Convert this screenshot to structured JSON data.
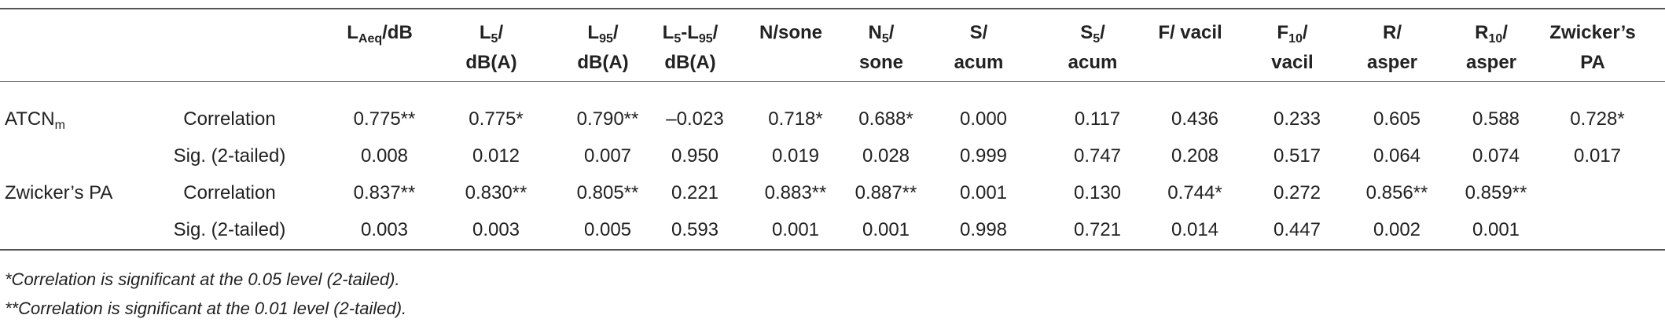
{
  "table": {
    "columns": [
      [
        [
          "L",
          {
            "sub": "Aeq"
          },
          "/dB"
        ]
      ],
      [
        [
          "L",
          {
            "sub": "5"
          },
          "/"
        ],
        [
          "dB(A)"
        ]
      ],
      [
        [
          "L",
          {
            "sub": "95"
          },
          "/"
        ],
        [
          "dB(A)"
        ]
      ],
      [
        [
          "L",
          {
            "sub": "5"
          },
          "-L",
          {
            "sub": "95"
          },
          "/"
        ],
        [
          "dB(A)"
        ]
      ],
      [
        [
          "N/sone"
        ]
      ],
      [
        [
          "N",
          {
            "sub": "5"
          },
          "/"
        ],
        [
          "sone"
        ]
      ],
      [
        [
          "S/"
        ],
        [
          "acum"
        ]
      ],
      [
        [
          "S",
          {
            "sub": "5"
          },
          "/"
        ],
        [
          "acum"
        ]
      ],
      [
        [
          "F/ vacil"
        ]
      ],
      [
        [
          "F",
          {
            "sub": "10"
          },
          "/"
        ],
        [
          "vacil"
        ]
      ],
      [
        [
          "R/"
        ],
        [
          "asper"
        ]
      ],
      [
        [
          "R",
          {
            "sub": "10"
          },
          "/"
        ],
        [
          "asper"
        ]
      ],
      [
        [
          "Zwicker’s"
        ],
        [
          "PA"
        ]
      ]
    ],
    "groups": [
      {
        "label": [
          "ATCN",
          {
            "sub": "m"
          }
        ],
        "rows": [
          {
            "stat": "Correlation",
            "cells": [
              "0.775**",
              "0.775*",
              "0.790**",
              "–0.023",
              "0.718*",
              "0.688*",
              "0.000",
              "0.117",
              "0.436",
              "0.233",
              "0.605",
              "0.588",
              "0.728*"
            ]
          },
          {
            "stat": "Sig. (2-tailed)",
            "cells": [
              "0.008",
              "0.012",
              "0.007",
              "0.950",
              "0.019",
              "0.028",
              "0.999",
              "0.747",
              "0.208",
              "0.517",
              "0.064",
              "0.074",
              "0.017"
            ]
          }
        ]
      },
      {
        "label": [
          "Zwicker’s PA"
        ],
        "rows": [
          {
            "stat": "Correlation",
            "cells": [
              "0.837**",
              "0.830**",
              "0.805**",
              "0.221",
              "0.883**",
              "0.887**",
              "0.001",
              "0.130",
              "0.744*",
              "0.272",
              "0.856**",
              "0.859**"
            ]
          },
          {
            "stat": "Sig. (2-tailed)",
            "cells": [
              "0.003",
              "0.003",
              "0.005",
              "0.593",
              "0.001",
              "0.001",
              "0.998",
              "0.721",
              "0.014",
              "0.447",
              "0.002",
              "0.001"
            ]
          }
        ]
      }
    ],
    "footnotes": [
      "*Correlation is significant at the 0.05 level (2-tailed).",
      "**Correlation is significant at the 0.01 level (2-tailed)."
    ]
  }
}
